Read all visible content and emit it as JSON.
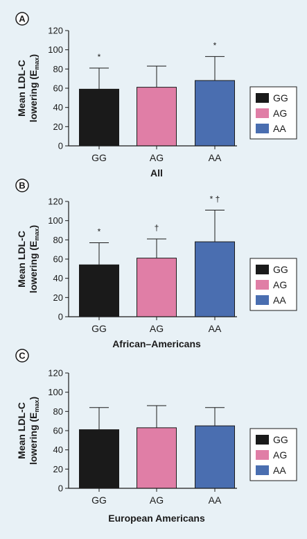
{
  "legend": [
    {
      "label": "GG",
      "color": "#1a1a1a"
    },
    {
      "label": "AG",
      "color": "#e07ea6"
    },
    {
      "label": "AA",
      "color": "#4a6eb0"
    }
  ],
  "chart_data": [
    {
      "type": "bar",
      "panel_label": "A",
      "categories": [
        "GG",
        "AG",
        "AA"
      ],
      "values": [
        59,
        61,
        68
      ],
      "error_upper": [
        81,
        83,
        93
      ],
      "annotations": [
        "*",
        "",
        "*"
      ],
      "xlabel": "All",
      "ylabel_main": "Mean LDL-C",
      "ylabel_line2": "lowering (E",
      "ylabel_sub": "max",
      "ylabel_close": ")",
      "ylim": [
        0,
        120
      ],
      "yticks": [
        "0",
        "20",
        "40",
        "60",
        "80",
        "100",
        "120"
      ],
      "legend_placement": "right"
    },
    {
      "type": "bar",
      "panel_label": "B",
      "categories": [
        "GG",
        "AG",
        "AA"
      ],
      "values": [
        54,
        61,
        78
      ],
      "error_upper": [
        77,
        81,
        111
      ],
      "annotations": [
        "*",
        "†",
        "* †"
      ],
      "xlabel": "African–Americans",
      "ylabel_main": "Mean LDL-C",
      "ylabel_line2": "lowering (E",
      "ylabel_sub": "max",
      "ylabel_close": ")",
      "ylim": [
        0,
        120
      ],
      "yticks": [
        "0",
        "20",
        "40",
        "60",
        "80",
        "100",
        "120"
      ],
      "legend_placement": "right"
    },
    {
      "type": "bar",
      "panel_label": "C",
      "categories": [
        "GG",
        "AG",
        "AA"
      ],
      "values": [
        61,
        63,
        65
      ],
      "error_upper": [
        84,
        86,
        84
      ],
      "annotations": [
        "",
        "",
        ""
      ],
      "xlabel": "European Americans",
      "ylabel_main": "Mean LDL-C",
      "ylabel_line2": "lowering (E",
      "ylabel_sub": "max",
      "ylabel_close": ")",
      "ylim": [
        0,
        120
      ],
      "yticks": [
        "0",
        "20",
        "40",
        "60",
        "80",
        "100",
        "120"
      ],
      "legend_placement": "right"
    }
  ]
}
